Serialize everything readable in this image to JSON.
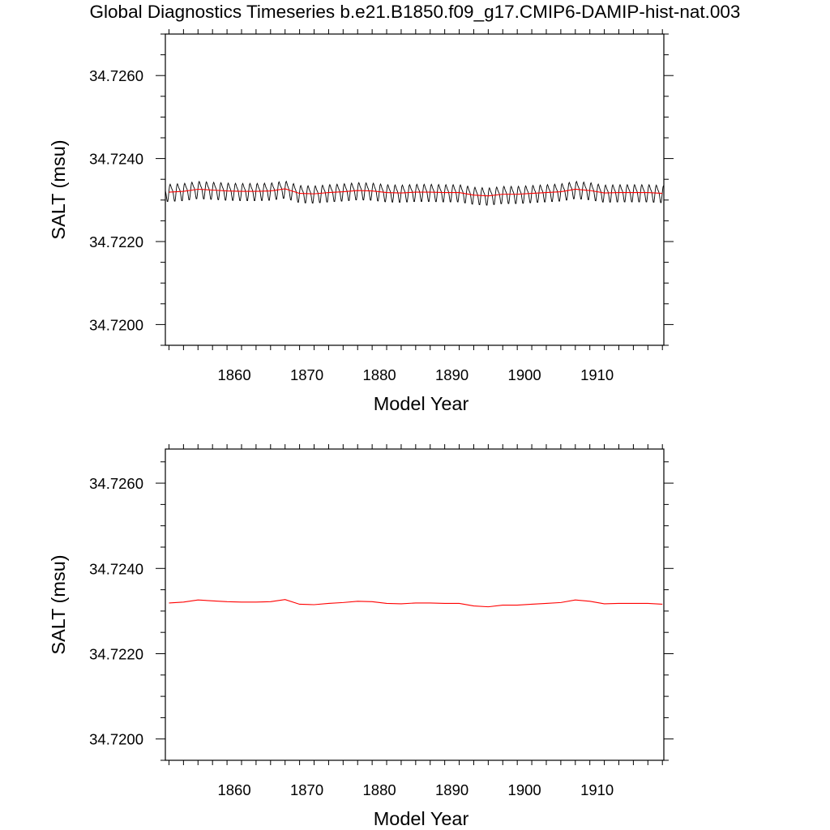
{
  "title": "Global Diagnostics Timeseries b.e21.B1850.f09_g17.CMIP6-DAMIP-hist-nat.003",
  "colors": {
    "monthly": "#000000",
    "annual": "#ff0000",
    "axes": "#000000",
    "background": "#ffffff"
  },
  "chart_data": [
    {
      "type": "line",
      "title": "",
      "xlabel": "Model Year",
      "ylabel": "SALT (msu)",
      "xlim": [
        1850.5,
        1919.2
      ],
      "ylim": [
        34.7195,
        34.727
      ],
      "xticks": [
        1860,
        1870,
        1880,
        1890,
        1900,
        1910
      ],
      "xtick_labels": [
        "1860",
        "1870",
        "1880",
        "1890",
        "1900",
        "1910"
      ],
      "yticks": [
        34.72,
        34.722,
        34.724,
        34.726
      ],
      "ytick_labels": [
        "34.7200",
        "34.7220",
        "34.7240",
        "34.7260"
      ],
      "grid": false,
      "series": [
        {
          "style": "monthly",
          "color": "#000000",
          "seasonal_cycle": {
            "period_years": 1,
            "amplitude": 0.00025
          },
          "x": [
            1851,
            1853,
            1855,
            1857,
            1859,
            1861,
            1863,
            1865,
            1867,
            1869,
            1871,
            1873,
            1875,
            1877,
            1879,
            1881,
            1883,
            1885,
            1887,
            1889,
            1891,
            1893,
            1895,
            1897,
            1899,
            1901,
            1903,
            1905,
            1907,
            1909,
            1911,
            1913,
            1915,
            1917,
            1919
          ],
          "y": [
            34.72319,
            34.72321,
            34.72326,
            34.72324,
            34.72322,
            34.72321,
            34.72321,
            34.72322,
            34.72327,
            34.72316,
            34.72315,
            34.72318,
            34.7232,
            34.72323,
            34.72322,
            34.72318,
            34.72317,
            34.72319,
            34.72319,
            34.72318,
            34.72318,
            34.72312,
            34.7231,
            34.72314,
            34.72314,
            34.72316,
            34.72318,
            34.7232,
            34.72326,
            34.72323,
            34.72317,
            34.72318,
            34.72318,
            34.72318,
            34.72316
          ]
        },
        {
          "style": "annual",
          "color": "#ff0000",
          "x": [
            1851,
            1853,
            1855,
            1857,
            1859,
            1861,
            1863,
            1865,
            1867,
            1869,
            1871,
            1873,
            1875,
            1877,
            1879,
            1881,
            1883,
            1885,
            1887,
            1889,
            1891,
            1893,
            1895,
            1897,
            1899,
            1901,
            1903,
            1905,
            1907,
            1909,
            1911,
            1913,
            1915,
            1917,
            1919
          ],
          "y": [
            34.72319,
            34.72321,
            34.72326,
            34.72324,
            34.72322,
            34.72321,
            34.72321,
            34.72322,
            34.72327,
            34.72316,
            34.72315,
            34.72318,
            34.7232,
            34.72323,
            34.72322,
            34.72318,
            34.72317,
            34.72319,
            34.72319,
            34.72318,
            34.72318,
            34.72312,
            34.7231,
            34.72314,
            34.72314,
            34.72316,
            34.72318,
            34.7232,
            34.72326,
            34.72323,
            34.72317,
            34.72318,
            34.72318,
            34.72318,
            34.72316
          ]
        }
      ]
    },
    {
      "type": "line",
      "title": "",
      "xlabel": "Model Year",
      "ylabel": "SALT (msu)",
      "xlim": [
        1850.5,
        1919.2
      ],
      "ylim": [
        34.7195,
        34.7268
      ],
      "xticks": [
        1860,
        1870,
        1880,
        1890,
        1900,
        1910
      ],
      "xtick_labels": [
        "1860",
        "1870",
        "1880",
        "1890",
        "1900",
        "1910"
      ],
      "yticks": [
        34.72,
        34.722,
        34.724,
        34.726
      ],
      "ytick_labels": [
        "34.7200",
        "34.7220",
        "34.7240",
        "34.7260"
      ],
      "grid": false,
      "series": [
        {
          "style": "annual",
          "color": "#ff0000",
          "x": [
            1851,
            1853,
            1855,
            1857,
            1859,
            1861,
            1863,
            1865,
            1867,
            1869,
            1871,
            1873,
            1875,
            1877,
            1879,
            1881,
            1883,
            1885,
            1887,
            1889,
            1891,
            1893,
            1895,
            1897,
            1899,
            1901,
            1903,
            1905,
            1907,
            1909,
            1911,
            1913,
            1915,
            1917,
            1919
          ],
          "y": [
            34.72319,
            34.72321,
            34.72326,
            34.72324,
            34.72322,
            34.72321,
            34.72321,
            34.72322,
            34.72327,
            34.72316,
            34.72315,
            34.72318,
            34.7232,
            34.72323,
            34.72322,
            34.72318,
            34.72317,
            34.72319,
            34.72319,
            34.72318,
            34.72318,
            34.72312,
            34.7231,
            34.72314,
            34.72314,
            34.72316,
            34.72318,
            34.7232,
            34.72326,
            34.72323,
            34.72317,
            34.72318,
            34.72318,
            34.72318,
            34.72316
          ]
        }
      ]
    }
  ]
}
